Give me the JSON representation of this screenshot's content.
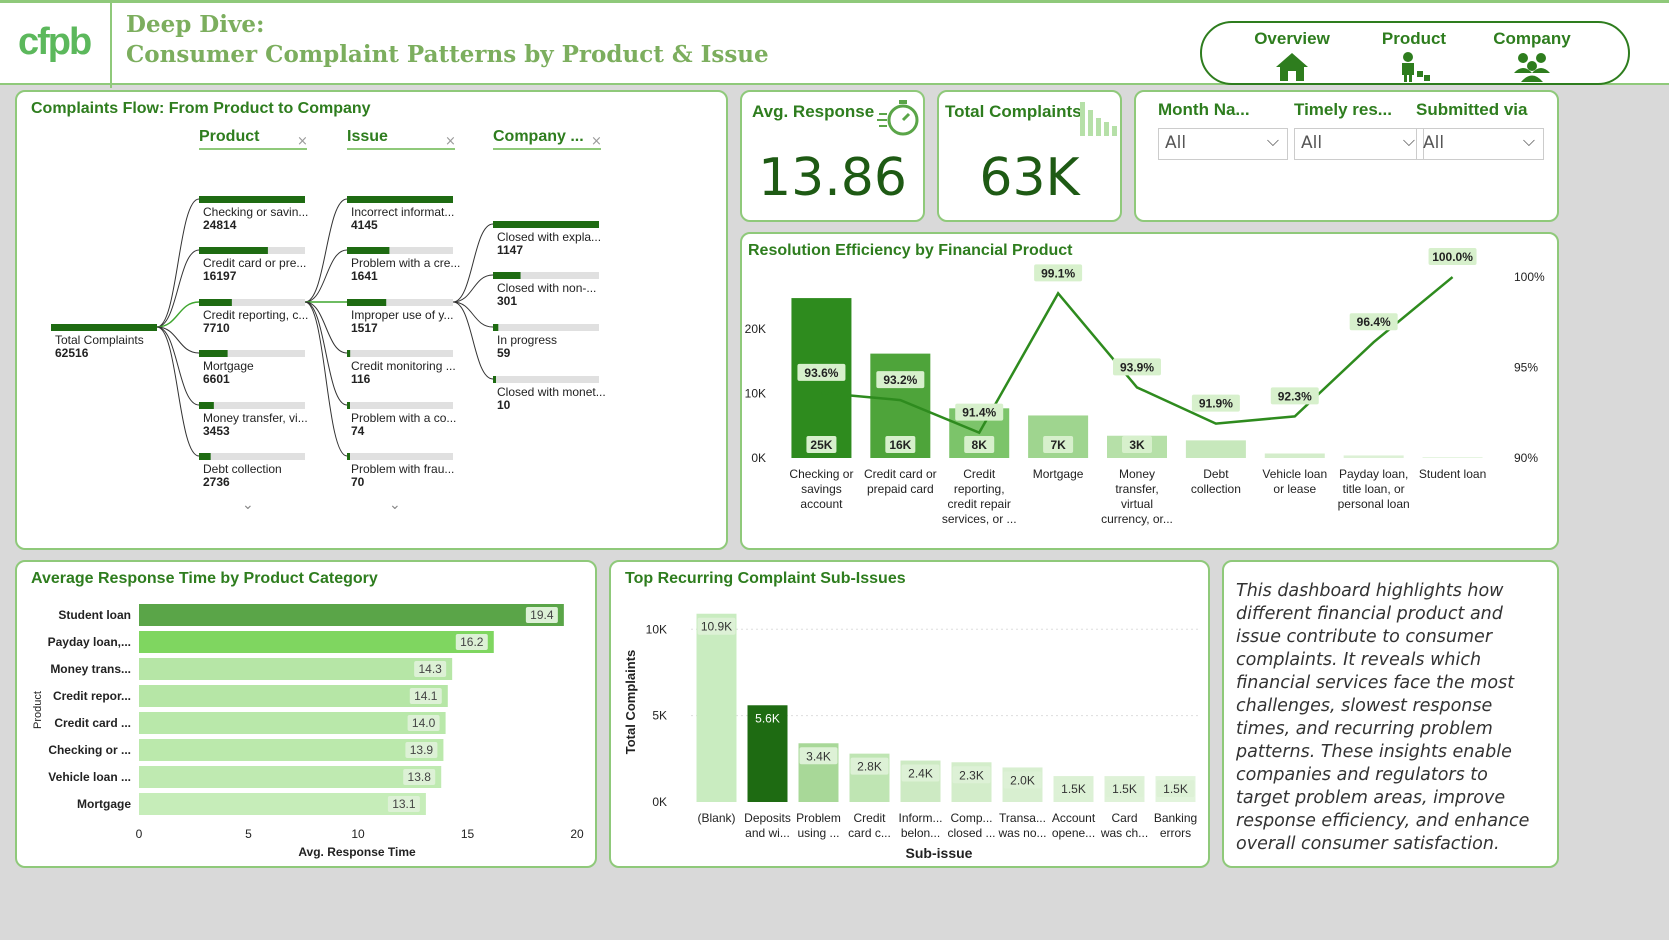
{
  "header": {
    "logo": "cfpb",
    "title_line1": "Deep Dive:",
    "title_line2": "Consumer Complaint Patterns by Product & Issue"
  },
  "nav": [
    {
      "label": "Overview",
      "icon": "home-icon"
    },
    {
      "label": "Product",
      "icon": "product-icon"
    },
    {
      "label": "Company",
      "icon": "people-icon"
    }
  ],
  "kpis": {
    "avg_response": {
      "label": "Avg. Response",
      "value": "13.86",
      "icon": "stopwatch-icon"
    },
    "total_complaints": {
      "label": "Total Complaints",
      "value": "63K",
      "icon": "bar-chart-icon"
    }
  },
  "slicers": [
    {
      "label": "Month Na...",
      "value": "All"
    },
    {
      "label": "Timely res...",
      "value": "All"
    },
    {
      "label": "Submitted via",
      "value": "All"
    }
  ],
  "tree": {
    "title": "Complaints Flow: From Product to Company",
    "headers": [
      "Product",
      "Issue",
      "Company ..."
    ],
    "root": {
      "label": "Total Complaints",
      "value": "62516"
    },
    "products": [
      {
        "label": "Checking or savin...",
        "value": "24814",
        "fill": 1.0
      },
      {
        "label": "Credit card or pre...",
        "value": "16197",
        "fill": 0.65
      },
      {
        "label": "Credit reporting, c...",
        "value": "7710",
        "fill": 0.31
      },
      {
        "label": "Mortgage",
        "value": "6601",
        "fill": 0.27
      },
      {
        "label": "Money transfer, vi...",
        "value": "3453",
        "fill": 0.14
      },
      {
        "label": "Debt collection",
        "value": "2736",
        "fill": 0.11
      }
    ],
    "issues": [
      {
        "label": "Incorrect informat...",
        "value": "4145",
        "fill": 1.0
      },
      {
        "label": "Problem with a cre...",
        "value": "1641",
        "fill": 0.4
      },
      {
        "label": "Improper use of y...",
        "value": "1517",
        "fill": 0.37
      },
      {
        "label": "Credit monitoring ...",
        "value": "116",
        "fill": 0.03
      },
      {
        "label": "Problem with a co...",
        "value": "74",
        "fill": 0.02
      },
      {
        "label": "Problem with frau...",
        "value": "70",
        "fill": 0.02
      }
    ],
    "companies": [
      {
        "label": "Closed with expla...",
        "value": "1147",
        "fill": 1.0
      },
      {
        "label": "Closed with non-...",
        "value": "301",
        "fill": 0.26
      },
      {
        "label": "In progress",
        "value": "59",
        "fill": 0.05
      },
      {
        "label": "Closed with monet...",
        "value": "10",
        "fill": 0.01
      }
    ]
  },
  "resolution": {
    "title": "Resolution Efficiency by Financial Product",
    "y_ticks": [
      "20K",
      "10K",
      "0K"
    ],
    "y2_ticks": [
      "100%",
      "95%",
      "90%"
    ],
    "categories": [
      [
        "Checking or",
        "savings",
        "account"
      ],
      [
        "Credit card or",
        "prepaid card"
      ],
      [
        "Credit",
        "reporting,",
        "credit repair",
        "services, or ..."
      ],
      [
        "Mortgage"
      ],
      [
        "Money",
        "transfer,",
        "virtual",
        "currency, or..."
      ],
      [
        "Debt",
        "collection"
      ],
      [
        "Vehicle loan",
        "or lease"
      ],
      [
        "Payday loan,",
        "title loan, or",
        "personal loan"
      ],
      [
        "Student loan"
      ]
    ],
    "bars": [
      24814,
      16197,
      7710,
      6601,
      3453,
      2736,
      700,
      400,
      150
    ],
    "bar_labels": [
      "25K",
      "16K",
      "8K",
      "7K",
      "3K",
      "",
      "",
      "",
      ""
    ],
    "bar_colors": [
      "#2e8b1e",
      "#4ea43a",
      "#7cc46a",
      "#9fd58f",
      "#b6e0a8",
      "#c7e8bc",
      "#d4edcb",
      "#ddf1d6",
      "#e6f5e0"
    ],
    "line": [
      93.6,
      93.2,
      91.4,
      99.1,
      93.9,
      91.9,
      92.3,
      96.4,
      100.0
    ],
    "line_labels": [
      "93.6%",
      "93.2%",
      "91.4%",
      "99.1%",
      "93.9%",
      "91.9%",
      "92.3%",
      "96.4%",
      "100.0%"
    ]
  },
  "avg_response_chart": {
    "title": "Average Response Time by Product Category",
    "ylabel": "Product",
    "xlabel": "Avg. Response Time",
    "x_ticks": [
      "0",
      "5",
      "10",
      "15",
      "20"
    ],
    "categories": [
      "Student loan",
      "Payday loan,...",
      "Money trans...",
      "Credit repor...",
      "Credit card ...",
      "Checking or ...",
      "Vehicle loan ...",
      "Mortgage"
    ],
    "values": [
      19.4,
      16.2,
      14.3,
      14.1,
      14.0,
      13.9,
      13.8,
      13.1
    ],
    "labels": [
      "19.4",
      "16.2",
      "14.3",
      "14.1",
      "14.0",
      "13.9",
      "13.8",
      "13.1"
    ],
    "colors": [
      "#5aa548",
      "#7fd660",
      "#b6e6a6",
      "#b6e6a6",
      "#b9e8aa",
      "#bbe9ac",
      "#bfeab1",
      "#c6edb9"
    ]
  },
  "sub_issues": {
    "title": "Top Recurring Complaint Sub-Issues",
    "ylabel": "Total Complaints",
    "xlabel": "Sub-issue",
    "y_ticks": [
      "10K",
      "5K",
      "0K"
    ],
    "categories": [
      [
        "(Blank)"
      ],
      [
        "Deposits",
        "and wi..."
      ],
      [
        "Problem",
        "using ..."
      ],
      [
        "Credit",
        "card c..."
      ],
      [
        "Inform...",
        "belon..."
      ],
      [
        "Comp...",
        "closed ..."
      ],
      [
        "Transa...",
        "was no..."
      ],
      [
        "Account",
        "opene..."
      ],
      [
        "Card",
        "was ch..."
      ],
      [
        "Banking",
        "errors"
      ]
    ],
    "values": [
      10.9,
      5.6,
      3.4,
      2.8,
      2.4,
      2.3,
      2.0,
      1.5,
      1.5,
      1.5
    ],
    "labels": [
      "10.9K",
      "5.6K",
      "3.4K",
      "2.8K",
      "2.4K",
      "2.3K",
      "2.0K",
      "1.5K",
      "1.5K",
      "1.5K"
    ],
    "colors": [
      "#c9ecc0",
      "#1e6b12",
      "#a8d898",
      "#bfe5b3",
      "#cdeac3",
      "#d3edca",
      "#d8efd0",
      "#dcf1d5",
      "#dff2d8",
      "#e2f4dc"
    ]
  },
  "narrative": "This dashboard highlights how different financial product and issue contribute to consumer complaints. It reveals which financial services face the most challenges, slowest response times, and recurring problem patterns. These insights enable companies and regulators to target problem areas, improve response efficiency, and enhance overall consumer satisfaction."
}
